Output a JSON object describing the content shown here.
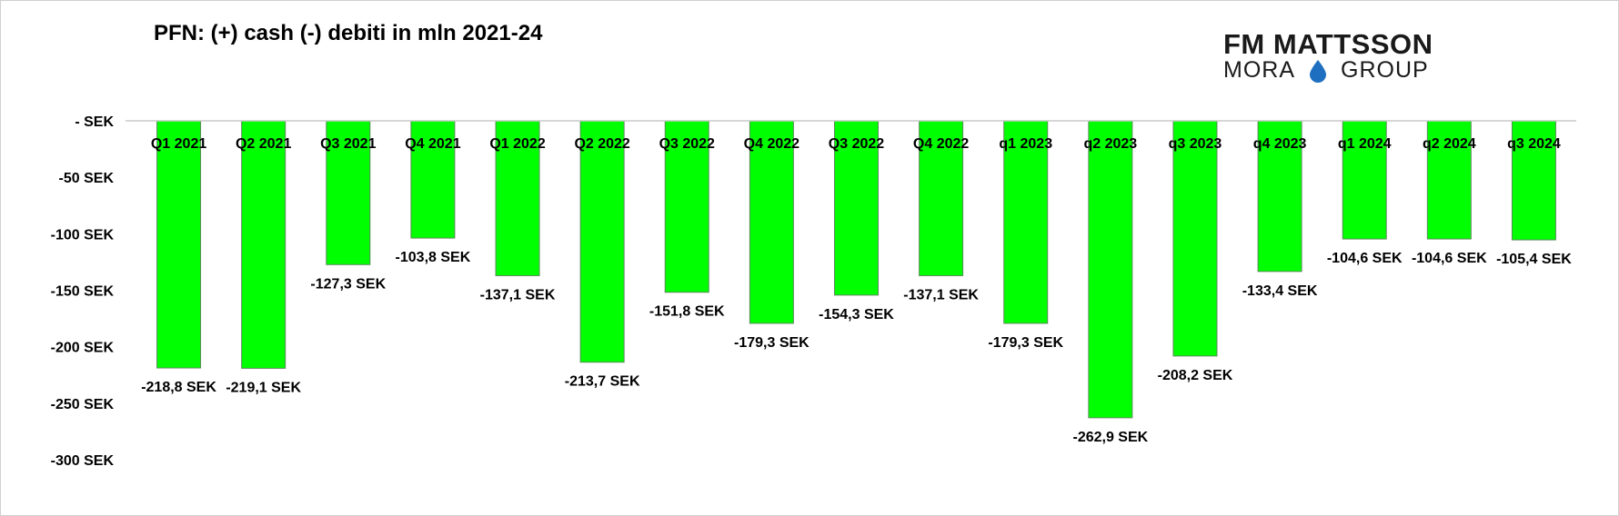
{
  "chart_data": {
    "type": "bar",
    "title": "PFN: (+) cash (-) debiti in mln 2021-24",
    "xlabel": "",
    "ylabel": "",
    "ylim": [
      -300,
      0
    ],
    "yticks": [
      0,
      -50,
      -100,
      -150,
      -200,
      -250,
      -300
    ],
    "ytick_labels": [
      "- SEK",
      "-50 SEK",
      "-100 SEK",
      "-150 SEK",
      "-200 SEK",
      "-250 SEK",
      "-300 SEK"
    ],
    "categories": [
      "Q1 2021",
      "Q2 2021",
      "Q3 2021",
      "Q4 2021",
      "Q1 2022",
      "Q2 2022",
      "Q3 2022",
      "Q4 2022",
      "Q3 2022",
      "Q4 2022",
      "q1 2023",
      "q2 2023",
      "q3 2023",
      "q4 2023",
      "q1 2024",
      "q2 2024",
      "q3 2024"
    ],
    "values": [
      -218.8,
      -219.1,
      -127.3,
      -103.8,
      -137.1,
      -213.7,
      -151.8,
      -179.3,
      -154.3,
      -137.1,
      -179.3,
      -262.9,
      -208.2,
      -133.4,
      -104.6,
      -104.6,
      -105.4
    ],
    "data_labels": [
      "-218,8 SEK",
      "-219,1 SEK",
      "-127,3 SEK",
      "-103,8 SEK",
      "-137,1 SEK",
      "-213,7 SEK",
      "-151,8 SEK",
      "-179,3 SEK",
      "-154,3 SEK",
      "-137,1 SEK",
      "-179,3 SEK",
      "-262,9 SEK",
      "-208,2 SEK",
      "-133,4 SEK",
      "-104,6 SEK",
      "-104,6 SEK",
      "-105,4 SEK"
    ],
    "grid": false,
    "legend": "none",
    "bar_color": "#00ff00",
    "bar_edge_color": "#5a8a5a"
  },
  "logo": {
    "line1": "FM MATTSSON",
    "line2_left": "MORA",
    "line2_right": "GROUP",
    "drop_color": "#1e6fc0"
  }
}
